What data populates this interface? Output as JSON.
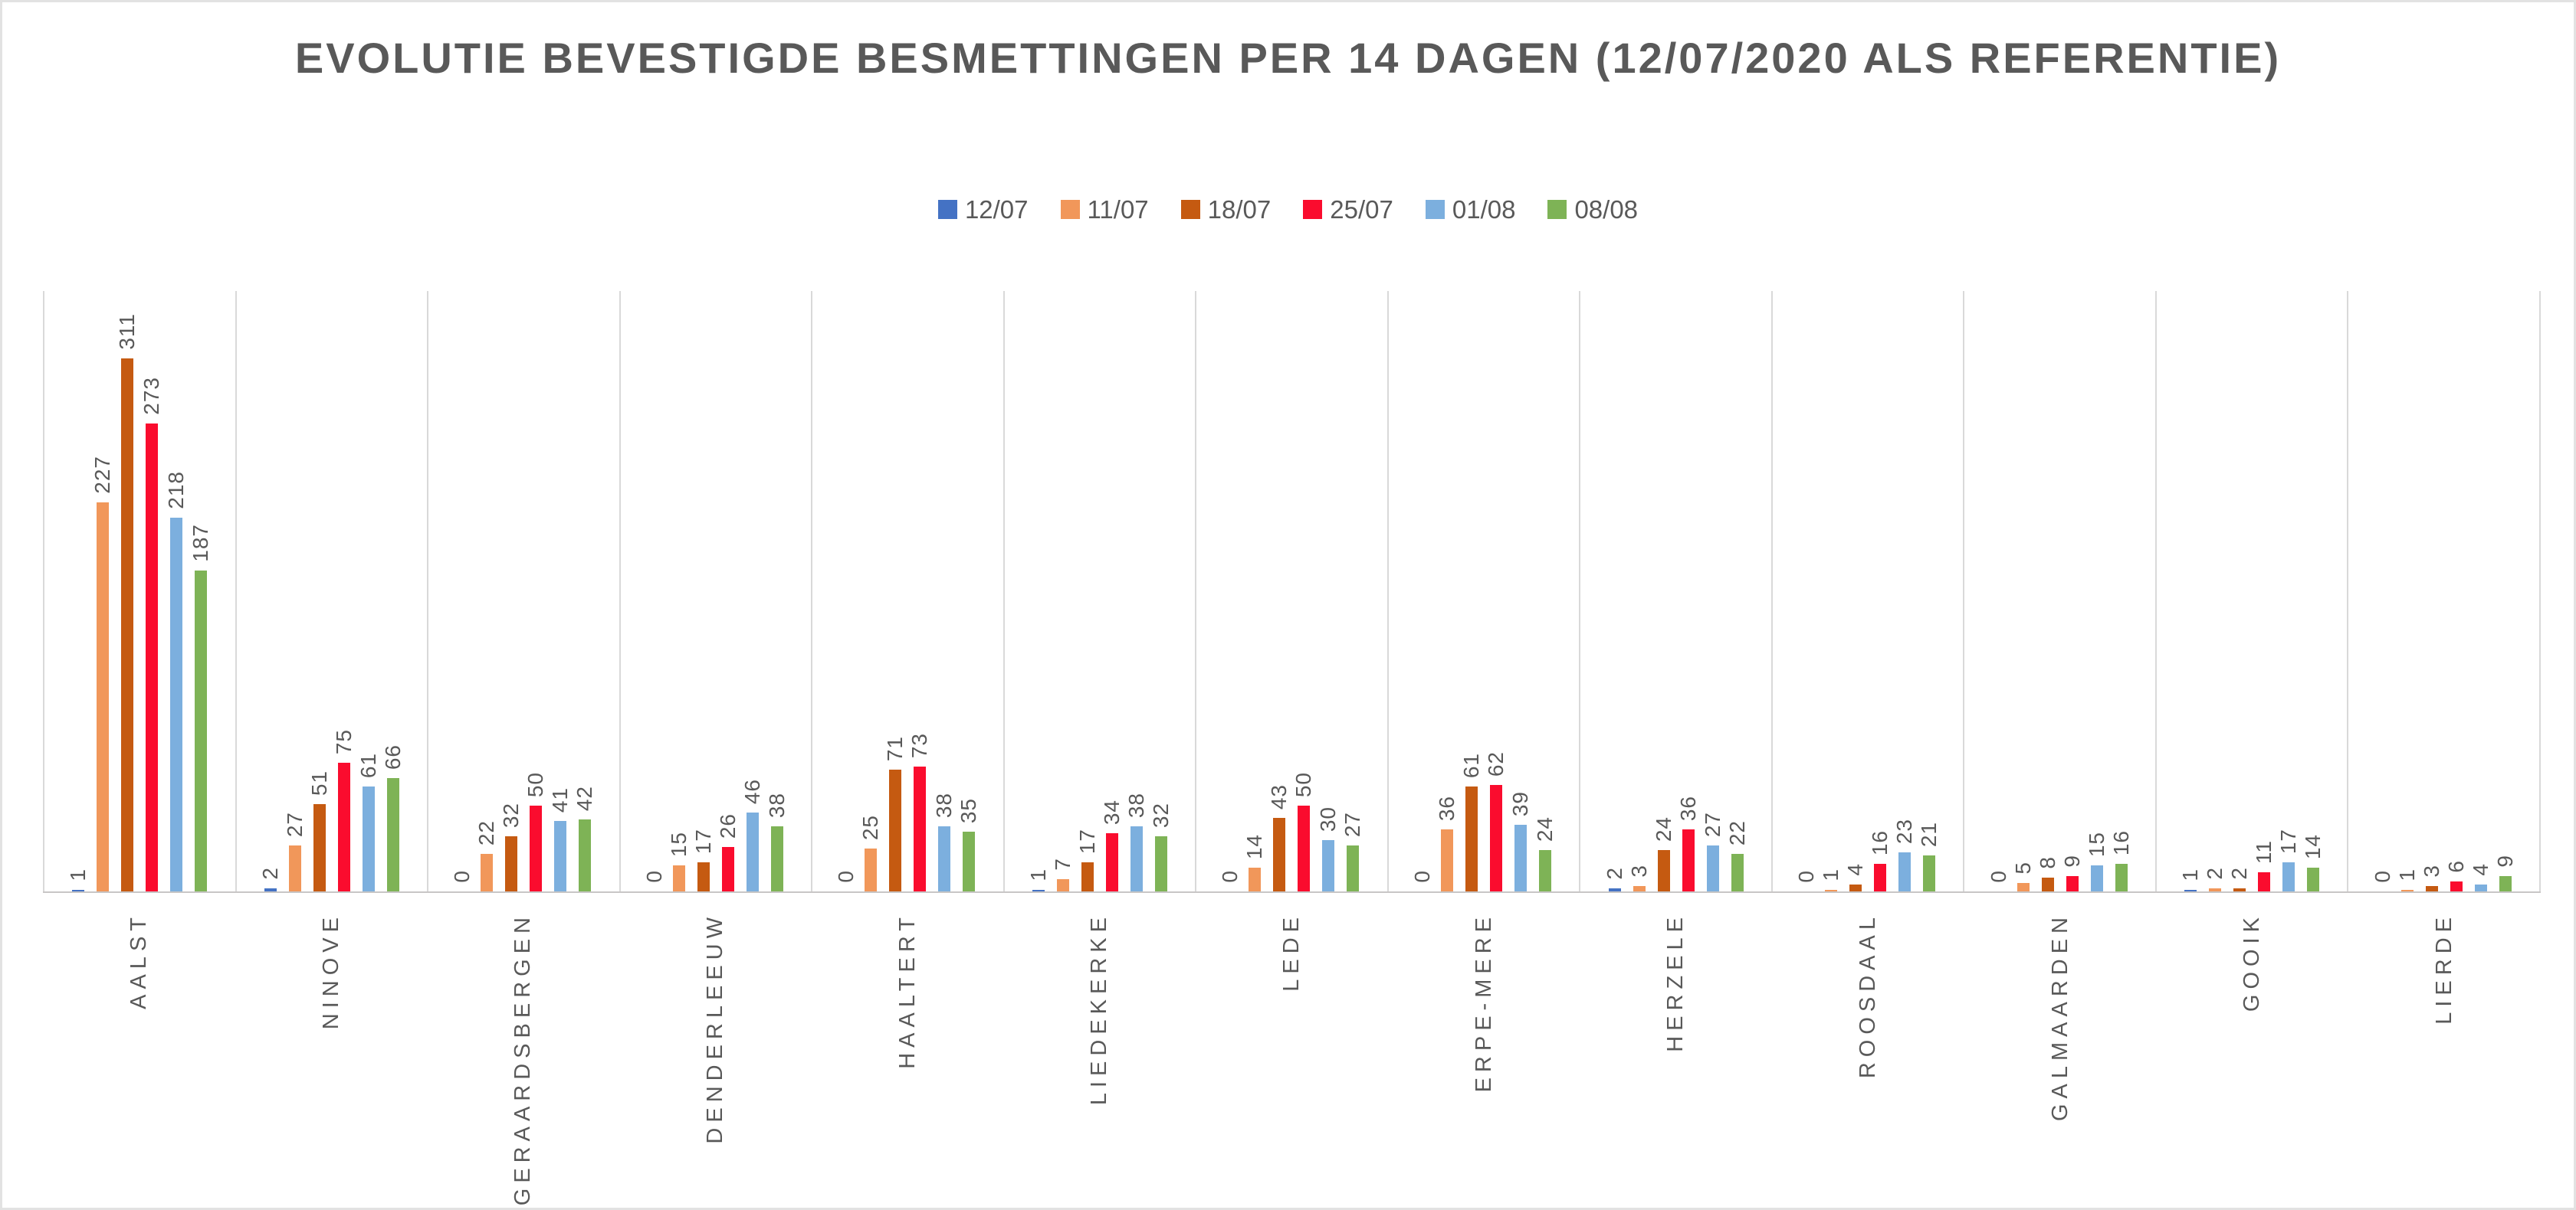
{
  "chart_data": {
    "type": "bar",
    "title": "EVOLUTIE BEVESTIGDE BESMETTINGEN PER 14 DAGEN (12/07/2020 ALS REFERENTIE)",
    "legend_position": "top",
    "grid": "vertical-category-separators",
    "ylim": [
      0,
      350
    ],
    "y_axis_labels_visible": false,
    "categories": [
      "AALST",
      "NINOVE",
      "GERAARDSBERGEN",
      "DENDERLEEUW",
      "HAALTERT",
      "LIEDEKERKE",
      "LEDE",
      "ERPE-MERE",
      "HERZELE",
      "ROOSDAAL",
      "GALMAARDEN",
      "GOOIK",
      "LIERDE"
    ],
    "series": [
      {
        "name": "12/07",
        "color": "#4472C4",
        "values": [
          1,
          2,
          0,
          0,
          0,
          1,
          0,
          0,
          2,
          0,
          0,
          1,
          0
        ]
      },
      {
        "name": "11/07",
        "color": "#F1975A",
        "values": [
          227,
          27,
          22,
          15,
          25,
          7,
          14,
          36,
          3,
          1,
          5,
          2,
          1
        ]
      },
      {
        "name": "18/07",
        "color": "#C55A11",
        "values": [
          311,
          51,
          32,
          17,
          71,
          17,
          43,
          61,
          24,
          4,
          8,
          2,
          3
        ]
      },
      {
        "name": "25/07",
        "color": "#FA0C2E",
        "values": [
          273,
          75,
          50,
          26,
          73,
          34,
          50,
          62,
          36,
          16,
          9,
          11,
          6
        ]
      },
      {
        "name": "01/08",
        "color": "#7CAFDE",
        "values": [
          218,
          61,
          41,
          46,
          38,
          38,
          30,
          39,
          27,
          23,
          15,
          17,
          4
        ]
      },
      {
        "name": "08/08",
        "color": "#7EB356",
        "values": [
          187,
          66,
          42,
          38,
          35,
          32,
          27,
          24,
          22,
          21,
          16,
          14,
          9
        ]
      }
    ],
    "colors": {
      "text": "#595959",
      "gridline": "#D9D9D9",
      "axis_line": "#C8C6C6",
      "background": "#FFFFFF"
    }
  }
}
